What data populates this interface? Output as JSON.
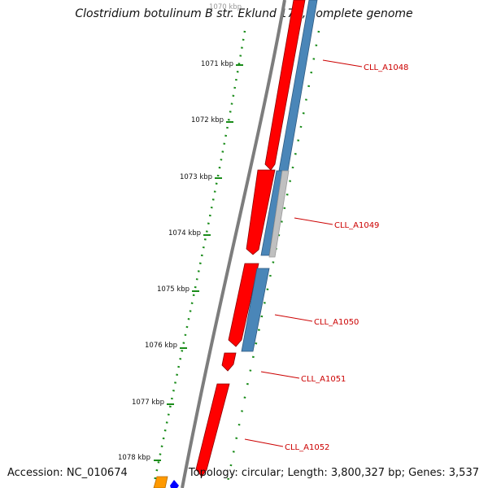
{
  "title": "Clostridium botulinum B str. Eklund 17B, complete genome",
  "accession": "Accession: NC_010674",
  "summary": "Topology: circular; Length: 3,800,327 bp; Genes: 3,537",
  "ticks": [
    "1070 kbp",
    "1071 kbp",
    "1072 kbp",
    "1073 kbp",
    "1074 kbp",
    "1075 kbp",
    "1076 kbp",
    "1077 kbp",
    "1078 kbp"
  ],
  "genes": [
    "CLL_A1048",
    "CLL_A1049",
    "CLL_A1050",
    "CLL_A1051",
    "CLL_A1052"
  ],
  "colors": {
    "forward_cds": "#ff0000",
    "reverse_cds": "#4a86b8",
    "other_feature": "#c0c0c0",
    "backbone": "#808080",
    "tick": "#1a8c1a",
    "label": "#cc0000",
    "orange_feature": "#ff9900",
    "blue_feature": "#0000ff"
  }
}
